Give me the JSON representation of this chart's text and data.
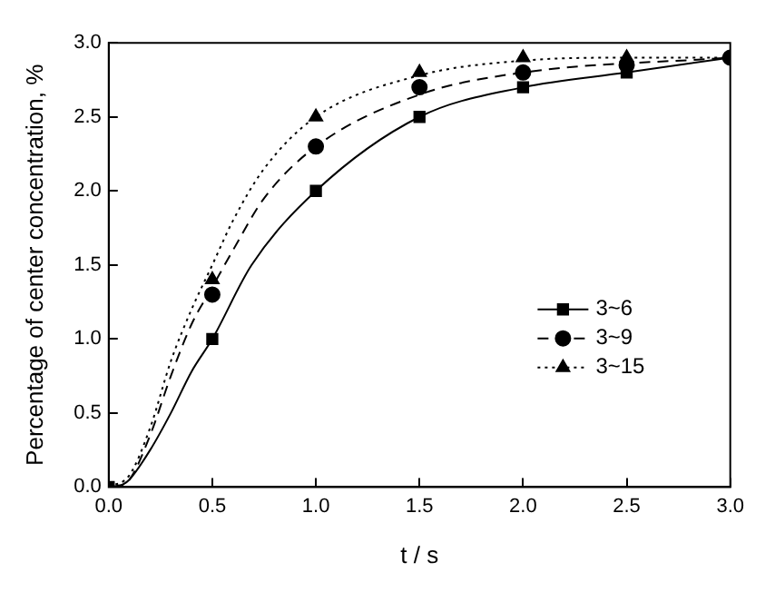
{
  "chart_data": {
    "type": "line",
    "xlabel": "t / s",
    "ylabel": "Percentage of center concentration, %",
    "xlim": [
      0,
      3
    ],
    "ylim": [
      0,
      3
    ],
    "xticks": [
      {
        "value": 0,
        "label": "0.0"
      },
      {
        "value": 0.5,
        "label": "0.5"
      },
      {
        "value": 1,
        "label": "1.0"
      },
      {
        "value": 1.5,
        "label": "1.5"
      },
      {
        "value": 2,
        "label": "2.0"
      },
      {
        "value": 2.5,
        "label": "2.5"
      },
      {
        "value": 3,
        "label": "3.0"
      }
    ],
    "yticks": [
      {
        "value": 0,
        "label": "0.0"
      },
      {
        "value": 0.5,
        "label": "0.5"
      },
      {
        "value": 1,
        "label": "1.0"
      },
      {
        "value": 1.5,
        "label": "1.5"
      },
      {
        "value": 2,
        "label": "2.0"
      },
      {
        "value": 2.5,
        "label": "2.5"
      },
      {
        "value": 3,
        "label": "3.0"
      }
    ],
    "grid": false,
    "legend": "right",
    "series": [
      {
        "name": "3~6",
        "type": "scatter",
        "marker": "square",
        "line_style": "solid",
        "color": "#000000",
        "x": [
          0,
          0.5,
          1,
          1.5,
          2,
          2.5
        ],
        "values": [
          0,
          1.0,
          2.0,
          2.5,
          2.7,
          2.8
        ]
      },
      {
        "name": "3~9",
        "type": "scatter",
        "marker": "circle",
        "line_style": "dashed",
        "color": "#000000",
        "x": [
          0.5,
          1,
          1.5,
          2,
          2.5,
          3
        ],
        "values": [
          1.3,
          2.3,
          2.7,
          2.8,
          2.85,
          2.9
        ]
      },
      {
        "name": "3~15",
        "type": "scatter",
        "marker": "triangle",
        "line_style": "dotted",
        "color": "#000000",
        "x": [
          0.5,
          1,
          1.5,
          2,
          2.5
        ],
        "values": [
          1.4,
          2.5,
          2.8,
          2.9,
          2.9
        ]
      },
      {
        "marker": "none",
        "line_style": "solid",
        "color": "#000000",
        "x": [
          0.05,
          0.1,
          0.2,
          0.3,
          0.4,
          0.5,
          0.69,
          1,
          1.5,
          2,
          2.5,
          3
        ],
        "values": [
          0,
          0.05,
          0.25,
          0.5,
          0.78,
          1.0,
          1.5,
          2.0,
          2.5,
          2.7,
          2.8,
          2.9
        ]
      },
      {
        "marker": "none",
        "line_style": "dashed",
        "color": "#000000",
        "x": [
          0.02,
          0.1,
          0.2,
          0.3,
          0.4,
          0.5,
          0.6,
          0.75,
          1,
          1.5,
          2,
          3
        ],
        "values": [
          0,
          0.05,
          0.35,
          0.75,
          1.1,
          1.35,
          1.6,
          1.95,
          2.3,
          2.65,
          2.8,
          2.9
        ]
      },
      {
        "marker": "none",
        "line_style": "dotted",
        "color": "#000000",
        "x": [
          0,
          0.1,
          0.2,
          0.3,
          0.4,
          0.5,
          0.6,
          0.75,
          1,
          1.5,
          2,
          2.5,
          3
        ],
        "values": [
          0,
          0.08,
          0.4,
          0.85,
          1.2,
          1.5,
          1.8,
          2.15,
          2.5,
          2.78,
          2.88,
          2.9,
          2.9
        ]
      }
    ]
  }
}
